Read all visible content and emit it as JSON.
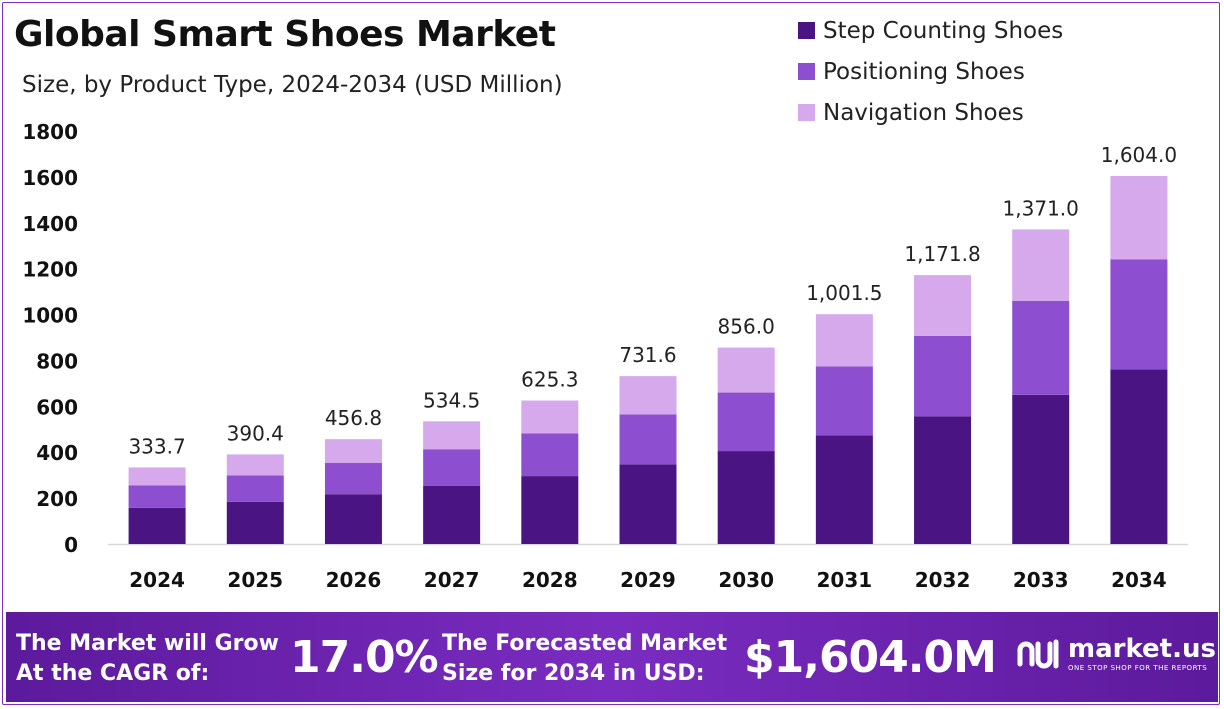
{
  "colors": {
    "step": "#4a1582",
    "positioning": "#8d4fd0",
    "navigation": "#d5a9eb",
    "footer": "#6a22ae"
  },
  "chart_data": {
    "type": "bar",
    "stacked": true,
    "title": "Global Smart Shoes Market",
    "subtitle": "Size, by Product Type, 2024-2034 (USD Million)",
    "categories": [
      "2024",
      "2025",
      "2026",
      "2027",
      "2028",
      "2029",
      "2030",
      "2031",
      "2032",
      "2033",
      "2034"
    ],
    "series": [
      {
        "name": "Step Counting Shoes",
        "values": [
          158,
          184,
          217,
          253,
          296,
          347,
          405,
          474,
          556,
          650,
          761
        ]
      },
      {
        "name": "Positioning Shoes",
        "values": [
          97,
          115,
          136,
          160,
          186,
          218,
          255,
          300,
          351,
          410,
          480
        ]
      },
      {
        "name": "Navigation Shoes",
        "values": [
          78.7,
          91.4,
          103.8,
          121.5,
          143.3,
          166.6,
          196.0,
          227.5,
          264.8,
          311.0,
          363.0
        ]
      }
    ],
    "totals": [
      "333.7",
      "390.4",
      "456.8",
      "534.5",
      "625.3",
      "731.6",
      "856.0",
      "1,001.5",
      "1,171.8",
      "1,371.0",
      "1,604.0"
    ],
    "yticks": [
      0,
      200,
      400,
      600,
      800,
      1000,
      1200,
      1400,
      1600,
      1800
    ],
    "ylim": [
      0,
      1800
    ],
    "legend_position": "top-right",
    "grid": false
  },
  "footer": {
    "cagr_line1": "The Market will Grow",
    "cagr_line2": "At the CAGR of:",
    "cagr_value": "17.0%",
    "forecast_line1": "The Forecasted Market",
    "forecast_line2": "Size for 2034 in USD:",
    "forecast_value": "$1,604.0M",
    "logo_icon": "market-us-logo-icon",
    "logo_name": "market.us",
    "logo_tagline": "ONE STOP SHOP FOR THE REPORTS"
  }
}
